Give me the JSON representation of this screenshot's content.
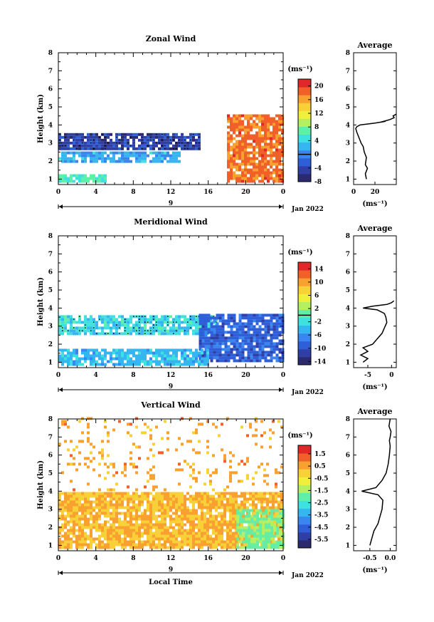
{
  "colors": {
    "map": [
      "#2b2a6e",
      "#2f3fa6",
      "#2f5fd8",
      "#3a86f0",
      "#35b6f0",
      "#3fe0e0",
      "#5ef0a8",
      "#b4f060",
      "#f0f03c",
      "#f8d038",
      "#f8a030",
      "#f06028",
      "#e02828"
    ]
  },
  "chart_data": [
    {
      "type": "heatmap",
      "title": "Zonal Wind",
      "ylabel": "Height (km)",
      "xlabel": "",
      "xlim": [
        0,
        24
      ],
      "ylim": [
        0.7,
        8
      ],
      "x_ticks": [
        "0",
        "4",
        "8",
        "12",
        "16",
        "20",
        "0"
      ],
      "y_ticks": [
        "1",
        "2",
        "3",
        "4",
        "5",
        "6",
        "7",
        "8"
      ],
      "date_label": "9",
      "date_text": "Jan 2022",
      "unit": "(ms⁻¹)",
      "colorbar_min": -8,
      "colorbar_max": 22,
      "colorbar_ticks": [
        "20",
        "16",
        "12",
        "8",
        "4",
        "0",
        "-4",
        "-8"
      ],
      "colorbar_tick_values": [
        20,
        16,
        12,
        8,
        4,
        0,
        -4,
        -8
      ],
      "colorbar_zero_line": 0,
      "regions": [
        {
          "desc": "easterly band",
          "x": [
            0,
            15
          ],
          "y": [
            2.6,
            3.5
          ],
          "value": -4,
          "speckle": true
        },
        {
          "desc": "weak band",
          "x": [
            0,
            13
          ],
          "y": [
            1.9,
            2.4
          ],
          "value": 2
        },
        {
          "desc": "low layer",
          "x": [
            0,
            5
          ],
          "y": [
            0.8,
            1.2
          ],
          "value": 6
        },
        {
          "desc": "strong westerlies",
          "x": [
            18,
            24
          ],
          "y": [
            0.8,
            4.5
          ],
          "value": 18
        }
      ],
      "profile": {
        "title": "Average",
        "xlabel": "(ms⁻¹)",
        "xlim": [
          0,
          40
        ],
        "x_ticks": [
          {
            "v": 0,
            "t": "0"
          },
          {
            "v": 20,
            "t": "20"
          }
        ],
        "x": [
          12,
          11,
          13,
          11,
          12,
          10,
          9,
          7,
          5,
          3,
          2,
          3,
          6,
          20,
          30,
          25,
          34,
          38,
          37,
          40
        ],
        "y": [
          1.0,
          1.3,
          1.6,
          1.8,
          2.2,
          2.5,
          2.8,
          3.0,
          3.3,
          3.6,
          3.8,
          3.9,
          4.0,
          4.1,
          4.2,
          4.15,
          4.3,
          4.4,
          4.5,
          4.6
        ]
      }
    },
    {
      "type": "heatmap",
      "title": "Meridional Wind",
      "ylabel": "Height (km)",
      "xlabel": "",
      "xlim": [
        0,
        24
      ],
      "ylim": [
        0.7,
        8
      ],
      "x_ticks": [
        "0",
        "4",
        "8",
        "12",
        "16",
        "20",
        "0"
      ],
      "y_ticks": [
        "1",
        "2",
        "3",
        "4",
        "5",
        "6",
        "7",
        "8"
      ],
      "date_label": "9",
      "date_text": "Jan 2022",
      "unit": "(ms⁻¹)",
      "colorbar_min": -15,
      "colorbar_max": 16,
      "colorbar_ticks": [
        "14",
        "10",
        "6",
        "2",
        "-2",
        "-6",
        "-10",
        "-14"
      ],
      "colorbar_tick_values": [
        14,
        10,
        6,
        2,
        -2,
        -6,
        -10,
        -14
      ],
      "colorbar_zero_line": 0,
      "regions": [
        {
          "desc": "northerly band",
          "x": [
            0,
            17
          ],
          "y": [
            2.5,
            3.6
          ],
          "value": -2,
          "speckle": true
        },
        {
          "desc": "strong southward",
          "x": [
            15,
            24
          ],
          "y": [
            1.0,
            3.6
          ],
          "value": -9
        },
        {
          "desc": "low layer",
          "x": [
            0,
            16
          ],
          "y": [
            0.8,
            1.6
          ],
          "value": -4
        }
      ],
      "profile": {
        "title": "Average",
        "xlabel": "(ms⁻¹)",
        "xlim": [
          -8,
          1
        ],
        "x_ticks": [
          {
            "v": -5,
            "t": "-5"
          },
          {
            "v": 0,
            "t": "0"
          }
        ],
        "x": [
          -6,
          -5,
          -6.5,
          -5,
          -6,
          -4,
          -3,
          -2,
          -1.5,
          -1,
          -1.2,
          -1.5,
          -3,
          -6,
          -4,
          -1,
          0,
          0.5
        ],
        "y": [
          1.0,
          1.2,
          1.4,
          1.6,
          1.8,
          2.0,
          2.3,
          2.6,
          2.9,
          3.2,
          3.5,
          3.7,
          3.9,
          4.0,
          4.1,
          4.2,
          4.3,
          4.4
        ]
      }
    },
    {
      "type": "heatmap",
      "title": "Vertical Wind",
      "ylabel": "Height (km)",
      "xlabel": "Local Time",
      "xlim": [
        0,
        24
      ],
      "ylim": [
        0.7,
        8
      ],
      "x_ticks": [
        "0",
        "4",
        "8",
        "12",
        "16",
        "20",
        "0"
      ],
      "y_ticks": [
        "1",
        "2",
        "3",
        "4",
        "5",
        "6",
        "7",
        "8"
      ],
      "date_label": "9",
      "date_text": "Jan 2022",
      "unit": "(ms⁻¹)",
      "colorbar_min": -6.2,
      "colorbar_max": 2.2,
      "colorbar_ticks": [
        "1.5",
        "0.5",
        "-0.5",
        "-1.5",
        "-2.5",
        "-3.5",
        "-4.5",
        "-5.5"
      ],
      "colorbar_tick_values": [
        1.5,
        0.5,
        -0.5,
        -1.5,
        -2.5,
        -3.5,
        -4.5,
        -5.5
      ],
      "colorbar_zero_line": null,
      "regions": [
        {
          "desc": "boundary layer",
          "x": [
            0,
            24
          ],
          "y": [
            0.8,
            3.9
          ],
          "value": 0.3
        },
        {
          "desc": "downdraft",
          "x": [
            19,
            24
          ],
          "y": [
            0.8,
            3.0
          ],
          "value": -1.8
        },
        {
          "desc": "sparse aloft",
          "x": [
            0,
            24
          ],
          "y": [
            4.0,
            8.0
          ],
          "value": 0.5,
          "sparse": true
        }
      ],
      "profile": {
        "title": "Average",
        "xlabel": "(ms⁻¹)",
        "xlim": [
          -0.9,
          0.15
        ],
        "x_ticks": [
          {
            "v": -0.5,
            "t": "-0.5"
          },
          {
            "v": 0,
            "t": "0.0"
          }
        ],
        "x": [
          -0.5,
          -0.45,
          -0.4,
          -0.3,
          -0.25,
          -0.2,
          -0.18,
          -0.3,
          -0.7,
          -0.35,
          -0.2,
          -0.1,
          -0.05,
          -0.02,
          0.0,
          -0.02,
          0.0,
          0.02,
          -0.03,
          0.0
        ],
        "y": [
          1.0,
          1.4,
          1.8,
          2.2,
          2.6,
          3.0,
          3.5,
          3.8,
          4.0,
          4.2,
          4.6,
          5.0,
          5.5,
          6.0,
          6.5,
          6.8,
          7.0,
          7.3,
          7.6,
          8.0
        ]
      }
    }
  ]
}
